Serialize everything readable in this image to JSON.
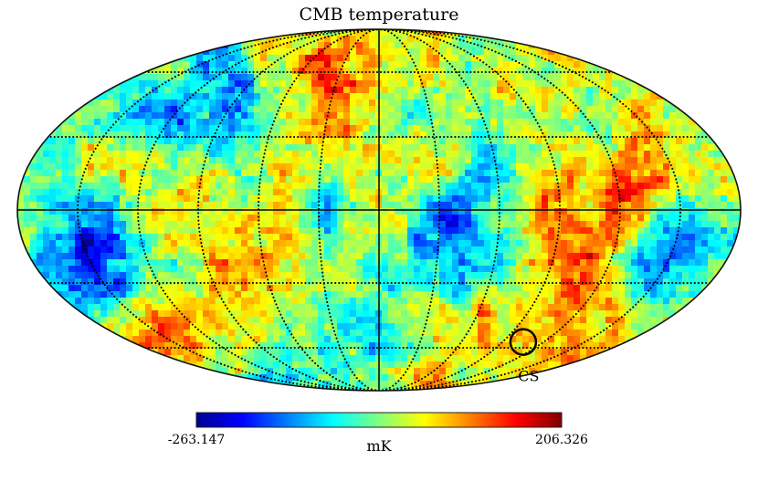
{
  "chart_data": {
    "type": "heatmap",
    "projection": "mollweide",
    "title": "CMB temperature",
    "colormap": "jet",
    "colorbar": {
      "unit": "mK",
      "min_label": "-263.147",
      "max_label": "206.326",
      "range": [
        -263.147,
        206.326
      ]
    },
    "graticule": {
      "longitude_step_deg": 30,
      "latitude_step_deg": 30,
      "style": "dotted",
      "equator_and_central_meridian": "solid"
    },
    "annotations": [
      {
        "label": "CS",
        "lon_deg": -105,
        "lat_deg": -57,
        "marker": "circle"
      }
    ],
    "features": [
      {
        "kind": "cold-region",
        "lon_deg": -45,
        "lat_deg": -5
      },
      {
        "kind": "cold-region",
        "lon_deg": -155,
        "lat_deg": -10
      },
      {
        "kind": "cold-region",
        "lon_deg": 155,
        "lat_deg": -20
      },
      {
        "kind": "cold-region",
        "lon_deg": 95,
        "lat_deg": 45
      },
      {
        "kind": "hot-region",
        "lon_deg": -130,
        "lat_deg": 5
      },
      {
        "kind": "hot-region",
        "lon_deg": -95,
        "lat_deg": -25
      },
      {
        "kind": "hot-region",
        "lon_deg": 165,
        "lat_deg": -55
      },
      {
        "kind": "hot-region",
        "lon_deg": -170,
        "lat_deg": -60
      },
      {
        "kind": "hot-region",
        "lon_deg": 30,
        "lat_deg": 45
      }
    ]
  }
}
